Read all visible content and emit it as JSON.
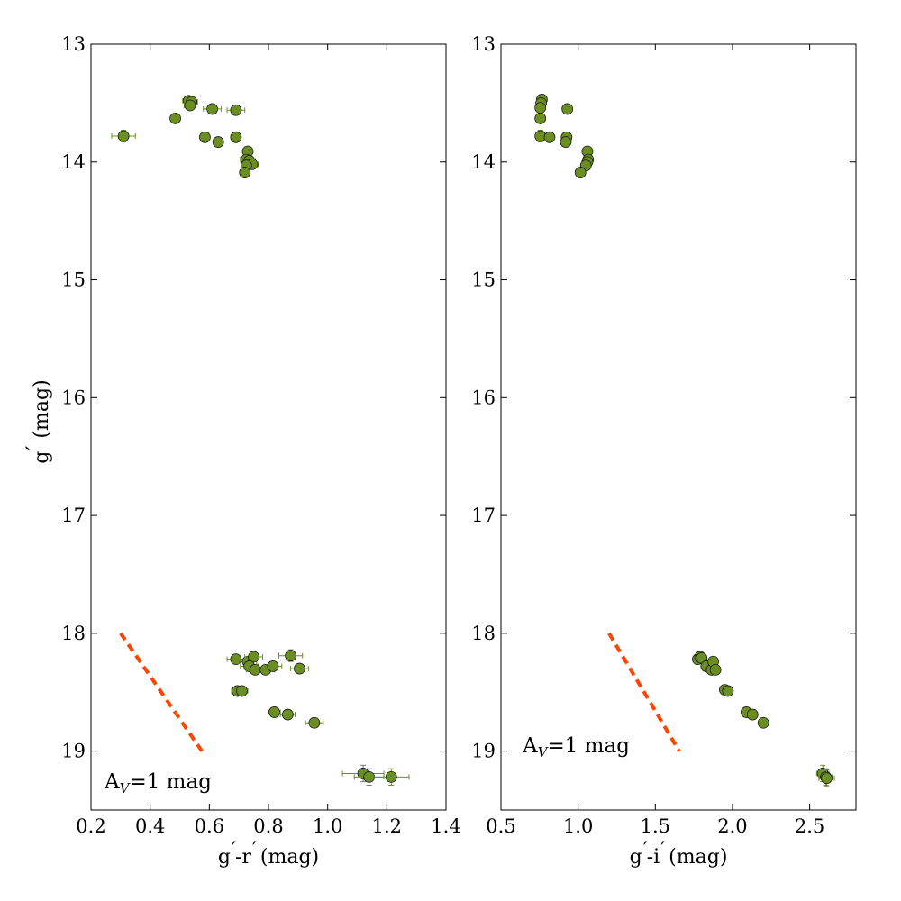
{
  "chart_data": [
    {
      "type": "scatter",
      "panel": "left",
      "xlabel_main": "g",
      "xlabel_sep": "-",
      "xlabel_second": "r",
      "xlabel_unit": "(mag)",
      "ylabel_main": "g",
      "ylabel_unit": "(mag)",
      "xlim": [
        0.2,
        1.4
      ],
      "ylim": [
        13,
        19.5
      ],
      "y_inverted": true,
      "xticks": [
        0.2,
        0.4,
        0.6,
        0.8,
        1.0,
        1.2,
        1.4
      ],
      "xtick_labels": [
        "0.2",
        "0.4",
        "0.6",
        "0.8",
        "1.0",
        "1.2",
        "1.4"
      ],
      "yticks": [
        13,
        14,
        15,
        16,
        17,
        18,
        19
      ],
      "ytick_labels": [
        "13",
        "14",
        "15",
        "16",
        "17",
        "18",
        "19"
      ],
      "grid": false,
      "marker_color": "#6b8e23",
      "points": [
        {
          "x": 0.31,
          "y": 13.78,
          "xerr": 0.04,
          "yerr": 0.05
        },
        {
          "x": 0.53,
          "y": 13.48,
          "xerr": 0.02,
          "yerr": 0.03
        },
        {
          "x": 0.54,
          "y": 13.49,
          "xerr": 0.02,
          "yerr": 0.03
        },
        {
          "x": 0.535,
          "y": 13.52,
          "xerr": 0.02,
          "yerr": 0.03
        },
        {
          "x": 0.485,
          "y": 13.63,
          "xerr": 0.015,
          "yerr": 0.03
        },
        {
          "x": 0.61,
          "y": 13.55,
          "xerr": 0.03,
          "yerr": 0.03
        },
        {
          "x": 0.69,
          "y": 13.56,
          "xerr": 0.03,
          "yerr": 0.03
        },
        {
          "x": 0.585,
          "y": 13.79,
          "xerr": 0.015,
          "yerr": 0.03
        },
        {
          "x": 0.63,
          "y": 13.83,
          "xerr": 0.015,
          "yerr": 0.03
        },
        {
          "x": 0.69,
          "y": 13.79,
          "xerr": 0.015,
          "yerr": 0.03
        },
        {
          "x": 0.73,
          "y": 13.91,
          "xerr": 0.015,
          "yerr": 0.03
        },
        {
          "x": 0.725,
          "y": 13.98,
          "xerr": 0.02,
          "yerr": 0.03
        },
        {
          "x": 0.735,
          "y": 13.99,
          "xerr": 0.02,
          "yerr": 0.03
        },
        {
          "x": 0.745,
          "y": 14.02,
          "xerr": 0.02,
          "yerr": 0.03
        },
        {
          "x": 0.725,
          "y": 14.03,
          "xerr": 0.015,
          "yerr": 0.03
        },
        {
          "x": 0.72,
          "y": 14.09,
          "xerr": 0.015,
          "yerr": 0.03
        },
        {
          "x": 0.69,
          "y": 18.22,
          "xerr": 0.03,
          "yerr": 0.04
        },
        {
          "x": 0.73,
          "y": 18.24,
          "xerr": 0.03,
          "yerr": 0.04
        },
        {
          "x": 0.75,
          "y": 18.2,
          "xerr": 0.03,
          "yerr": 0.04
        },
        {
          "x": 0.735,
          "y": 18.28,
          "xerr": 0.03,
          "yerr": 0.04
        },
        {
          "x": 0.755,
          "y": 18.31,
          "xerr": 0.03,
          "yerr": 0.04
        },
        {
          "x": 0.79,
          "y": 18.31,
          "xerr": 0.03,
          "yerr": 0.04
        },
        {
          "x": 0.815,
          "y": 18.28,
          "xerr": 0.03,
          "yerr": 0.04
        },
        {
          "x": 0.875,
          "y": 18.19,
          "xerr": 0.04,
          "yerr": 0.05
        },
        {
          "x": 0.905,
          "y": 18.3,
          "xerr": 0.03,
          "yerr": 0.04
        },
        {
          "x": 0.695,
          "y": 18.49,
          "xerr": 0.02,
          "yerr": 0.04
        },
        {
          "x": 0.71,
          "y": 18.49,
          "xerr": 0.02,
          "yerr": 0.04
        },
        {
          "x": 0.82,
          "y": 18.67,
          "xerr": 0.02,
          "yerr": 0.04
        },
        {
          "x": 0.865,
          "y": 18.69,
          "xerr": 0.025,
          "yerr": 0.04
        },
        {
          "x": 0.955,
          "y": 18.76,
          "xerr": 0.03,
          "yerr": 0.04
        },
        {
          "x": 1.12,
          "y": 19.19,
          "xerr": 0.07,
          "yerr": 0.07
        },
        {
          "x": 1.14,
          "y": 19.22,
          "xerr": 0.05,
          "yerr": 0.07
        },
        {
          "x": 1.215,
          "y": 19.22,
          "xerr": 0.06,
          "yerr": 0.07
        }
      ],
      "reddening_vector": {
        "x": [
          0.3,
          0.575
        ],
        "y": [
          18.0,
          19.0
        ],
        "color": "#ff4500",
        "style": "dashed"
      },
      "annotation": {
        "main": "A",
        "sub": "V",
        "rest": "=1 mag",
        "position": "bottom-left"
      }
    },
    {
      "type": "scatter",
      "panel": "right",
      "xlabel_main": "g",
      "xlabel_sep": "-",
      "xlabel_second": "i",
      "xlabel_unit": "(mag)",
      "xlim": [
        0.5,
        2.8
      ],
      "ylim": [
        13,
        19.5
      ],
      "y_inverted": true,
      "xticks": [
        0.5,
        1.0,
        1.5,
        2.0,
        2.5
      ],
      "xtick_labels": [
        "0.5",
        "1.0",
        "1.5",
        "2.0",
        "2.5"
      ],
      "yticks": [
        13,
        14,
        15,
        16,
        17,
        18,
        19
      ],
      "ytick_labels": [
        "13",
        "14",
        "15",
        "16",
        "17",
        "18",
        "19"
      ],
      "grid": false,
      "marker_color": "#6b8e23",
      "points": [
        {
          "x": 0.765,
          "y": 13.47,
          "xerr": 0.02,
          "yerr": 0.03
        },
        {
          "x": 0.76,
          "y": 13.5,
          "xerr": 0.02,
          "yerr": 0.03
        },
        {
          "x": 0.755,
          "y": 13.54,
          "xerr": 0.02,
          "yerr": 0.03
        },
        {
          "x": 0.755,
          "y": 13.63,
          "xerr": 0.02,
          "yerr": 0.03
        },
        {
          "x": 0.93,
          "y": 13.55,
          "xerr": 0.02,
          "yerr": 0.03
        },
        {
          "x": 0.755,
          "y": 13.78,
          "xerr": 0.03,
          "yerr": 0.05
        },
        {
          "x": 0.815,
          "y": 13.79,
          "xerr": 0.02,
          "yerr": 0.03
        },
        {
          "x": 0.925,
          "y": 13.79,
          "xerr": 0.02,
          "yerr": 0.03
        },
        {
          "x": 0.92,
          "y": 13.83,
          "xerr": 0.02,
          "yerr": 0.03
        },
        {
          "x": 1.06,
          "y": 13.91,
          "xerr": 0.02,
          "yerr": 0.03
        },
        {
          "x": 1.065,
          "y": 13.98,
          "xerr": 0.02,
          "yerr": 0.03
        },
        {
          "x": 1.06,
          "y": 14.0,
          "xerr": 0.02,
          "yerr": 0.03
        },
        {
          "x": 1.05,
          "y": 14.03,
          "xerr": 0.02,
          "yerr": 0.03
        },
        {
          "x": 1.015,
          "y": 14.09,
          "xerr": 0.02,
          "yerr": 0.03
        },
        {
          "x": 1.775,
          "y": 18.22,
          "xerr": 0.03,
          "yerr": 0.04
        },
        {
          "x": 1.79,
          "y": 18.2,
          "xerr": 0.03,
          "yerr": 0.04
        },
        {
          "x": 1.8,
          "y": 18.21,
          "xerr": 0.03,
          "yerr": 0.04
        },
        {
          "x": 1.83,
          "y": 18.28,
          "xerr": 0.03,
          "yerr": 0.04
        },
        {
          "x": 1.865,
          "y": 18.31,
          "xerr": 0.03,
          "yerr": 0.04
        },
        {
          "x": 1.875,
          "y": 18.24,
          "xerr": 0.03,
          "yerr": 0.04
        },
        {
          "x": 1.89,
          "y": 18.31,
          "xerr": 0.03,
          "yerr": 0.04
        },
        {
          "x": 1.95,
          "y": 18.48,
          "xerr": 0.03,
          "yerr": 0.04
        },
        {
          "x": 1.97,
          "y": 18.49,
          "xerr": 0.03,
          "yerr": 0.04
        },
        {
          "x": 2.09,
          "y": 18.67,
          "xerr": 0.02,
          "yerr": 0.04
        },
        {
          "x": 2.13,
          "y": 18.69,
          "xerr": 0.02,
          "yerr": 0.04
        },
        {
          "x": 2.2,
          "y": 18.76,
          "xerr": 0.02,
          "yerr": 0.04
        },
        {
          "x": 2.585,
          "y": 19.19,
          "xerr": 0.04,
          "yerr": 0.07
        },
        {
          "x": 2.605,
          "y": 19.22,
          "xerr": 0.04,
          "yerr": 0.07
        },
        {
          "x": 2.61,
          "y": 19.23,
          "xerr": 0.05,
          "yerr": 0.07
        }
      ],
      "reddening_vector": {
        "x": [
          1.2,
          1.655
        ],
        "y": [
          18.0,
          19.0
        ],
        "color": "#ff4500",
        "style": "dashed"
      },
      "annotation": {
        "main": "A",
        "sub": "V",
        "rest": "=1 mag",
        "position": "bottom-left"
      }
    }
  ]
}
